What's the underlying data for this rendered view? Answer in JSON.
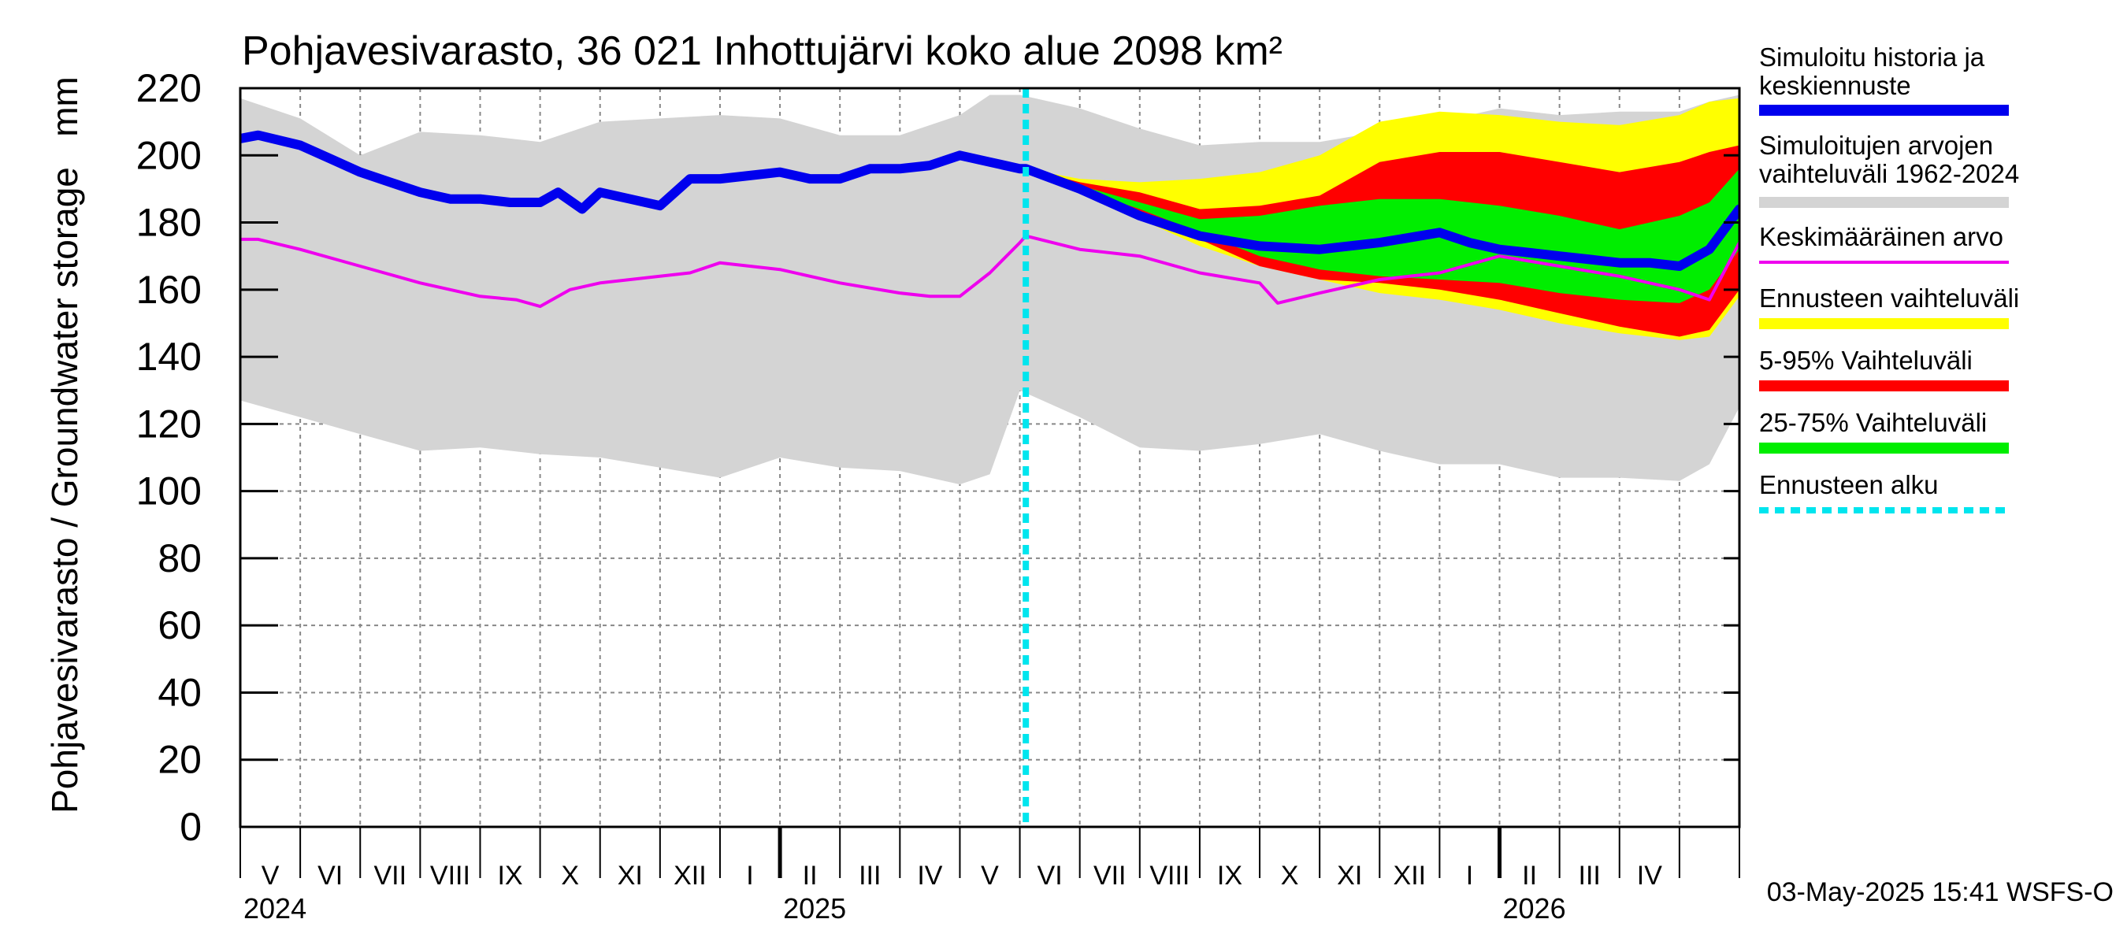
{
  "chart_data": {
    "type": "area",
    "title": "Pohjavesivarasto, 36 021 Inhottujärvi koko alue 2098 km²",
    "ylabel": "Pohjavesivarasto / Groundwater storage   mm",
    "ylim": [
      0,
      220
    ],
    "yticks": [
      0,
      20,
      40,
      60,
      80,
      100,
      120,
      140,
      160,
      180,
      200,
      220
    ],
    "x_unit": "months since 2024-04-01",
    "xlim": [
      0,
      25
    ],
    "forecast_start": 13.1,
    "month_labels": [
      "V",
      "VI",
      "VII",
      "VIII",
      "IX",
      "X",
      "XI",
      "XII",
      "I",
      "II",
      "III",
      "IV",
      "V",
      "VI",
      "VII",
      "VIII",
      "IX",
      "X",
      "XI",
      "XII",
      "I",
      "II",
      "III",
      "IV"
    ],
    "year_labels": [
      {
        "year": "2024",
        "x": 0
      },
      {
        "year": "2025",
        "x": 9
      },
      {
        "year": "2026",
        "x": 21
      }
    ],
    "timestamp": "03-May-2025 15:41 WSFS-O",
    "series": [
      {
        "name": "Simuloitujen arvojen vaihteluväli 1962-2024",
        "kind": "band",
        "color": "#d4d4d4",
        "x": [
          0,
          1,
          2,
          3,
          4,
          5,
          6,
          7,
          8,
          9,
          10,
          11,
          12,
          12.5,
          13,
          14,
          15,
          16,
          17,
          18,
          19,
          20,
          21,
          22,
          23,
          24,
          24.5,
          25
        ],
        "upper": [
          217,
          211,
          200,
          207,
          206,
          204,
          210,
          211,
          212,
          211,
          206,
          206,
          212,
          218,
          218,
          214,
          208,
          203,
          204,
          204,
          207,
          210,
          214,
          212,
          213,
          213,
          216,
          218
        ],
        "lower": [
          127,
          122,
          117,
          112,
          113,
          111,
          110,
          107,
          104,
          110,
          107,
          106,
          102,
          105,
          130,
          122,
          113,
          112,
          114,
          117,
          112,
          108,
          108,
          104,
          104,
          103,
          108,
          125
        ]
      },
      {
        "name": "Ennusteen vaihteluväli",
        "kind": "band",
        "color": "#ffff00",
        "x": [
          13.1,
          14,
          15,
          16,
          17,
          18,
          19,
          20,
          21,
          22,
          23,
          24,
          24.5,
          25
        ],
        "upper": [
          196,
          193,
          192,
          193,
          195,
          200,
          210,
          213,
          212,
          210,
          209,
          212,
          216,
          217
        ],
        "lower": [
          196,
          190,
          181,
          173,
          167,
          163,
          159,
          157,
          154,
          150,
          147,
          145,
          146,
          158
        ]
      },
      {
        "name": "5-95% Vaihteluväli",
        "kind": "band",
        "color": "#ff0000",
        "x": [
          13.1,
          14,
          15,
          16,
          17,
          18,
          19,
          20,
          21,
          22,
          23,
          24,
          24.5,
          25
        ],
        "upper": [
          196,
          192,
          189,
          184,
          185,
          188,
          198,
          201,
          201,
          198,
          195,
          198,
          201,
          203
        ],
        "lower": [
          196,
          190,
          183,
          175,
          167,
          163,
          162,
          160,
          157,
          153,
          149,
          146,
          148,
          160
        ]
      },
      {
        "name": "25-75% Vaihteluväli",
        "kind": "band",
        "color": "#00ee00",
        "x": [
          13.1,
          14,
          15,
          16,
          17,
          18,
          19,
          20,
          21,
          22,
          23,
          24,
          24.5,
          25
        ],
        "upper": [
          196,
          191,
          186,
          181,
          182,
          185,
          187,
          187,
          185,
          182,
          178,
          182,
          186,
          196
        ],
        "lower": [
          196,
          190,
          184,
          177,
          170,
          166,
          164,
          163,
          162,
          159,
          157,
          156,
          160,
          172
        ]
      },
      {
        "name": "Keskimääräinen arvo",
        "kind": "line",
        "color": "#ee00ee",
        "x": [
          0,
          0.3,
          1,
          2,
          3,
          4,
          4.6,
          5,
          5.5,
          6,
          7,
          7.5,
          8,
          9,
          10,
          11,
          11.5,
          12,
          12.5,
          13,
          13.1,
          14,
          15,
          16,
          17,
          17.3,
          18,
          19,
          20,
          21,
          22,
          23,
          24,
          24.5,
          25
        ],
        "values": [
          175,
          175,
          172,
          167,
          162,
          158,
          157,
          155,
          160,
          162,
          164,
          165,
          168,
          166,
          162,
          159,
          158,
          158,
          165,
          174,
          176,
          172,
          170,
          165,
          162,
          156,
          159,
          163,
          165,
          170,
          167,
          164,
          160,
          157,
          174
        ]
      },
      {
        "name": "Simuloitu historia ja keskiennuste",
        "kind": "line",
        "color": "#0000ee",
        "x": [
          0,
          0.3,
          1,
          1.5,
          2,
          2.5,
          3,
          3.5,
          4,
          4.5,
          5,
          5.3,
          5.7,
          6,
          6.5,
          7,
          7.5,
          8,
          8.5,
          9,
          9.5,
          10,
          10.5,
          11,
          11.5,
          12,
          12.5,
          13,
          13.1,
          14,
          15,
          16,
          17,
          18,
          19,
          20,
          20.5,
          21,
          21.5,
          22,
          22.5,
          23,
          23.5,
          24,
          24.5,
          25
        ],
        "values": [
          205,
          206,
          203,
          199,
          195,
          192,
          189,
          187,
          187,
          186,
          186,
          189,
          184,
          189,
          187,
          185,
          193,
          193,
          194,
          195,
          193,
          193,
          196,
          196,
          197,
          200,
          198,
          196,
          196,
          190,
          182,
          176,
          173,
          172,
          174,
          177,
          174,
          172,
          171,
          170,
          169,
          168,
          168,
          167,
          172,
          184
        ]
      }
    ],
    "legend": [
      {
        "label": "Simuloitu historia ja keskiennuste",
        "color": "#0000ee",
        "style": "solid"
      },
      {
        "label": "Simuloitujen arvojen vaihteluväli 1962-2024",
        "color": "#d4d4d4",
        "style": "solid"
      },
      {
        "label": "Keskimääräinen arvo",
        "color": "#ee00ee",
        "style": "thin"
      },
      {
        "label": "Ennusteen vaihteluväli",
        "color": "#ffff00",
        "style": "solid"
      },
      {
        "label": "5-95% Vaihteluväli",
        "color": "#ff0000",
        "style": "solid"
      },
      {
        "label": "25-75% Vaihteluväli",
        "color": "#00ee00",
        "style": "solid"
      },
      {
        "label": "Ennusteen alku",
        "color": "#00e5ee",
        "style": "dashed"
      }
    ]
  }
}
